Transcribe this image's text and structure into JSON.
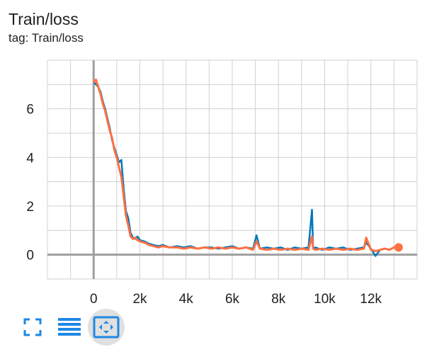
{
  "card": {
    "title": "Train/loss",
    "subtitle": "tag: Train/loss"
  },
  "toolbar": {
    "buttons": [
      {
        "icon": "fullscreen-icon"
      },
      {
        "icon": "toggle-log-scale-icon"
      },
      {
        "icon": "fit-domain-icon",
        "active": true
      }
    ]
  },
  "colors": {
    "raw_series": "#0077bb",
    "smoothed_series": "#ff7043",
    "grid": "#d0d0d0",
    "axis": "#9e9e9e",
    "active_button_bg": "#e0e0e0",
    "icon": "#1e88e5"
  },
  "chart_data": {
    "type": "line",
    "title": "",
    "xlabel": "",
    "ylabel": "",
    "xlim": [
      -2000,
      14000
    ],
    "ylim": [
      -1,
      8
    ],
    "x_ticks": [
      0,
      2000,
      4000,
      6000,
      8000,
      10000,
      12000
    ],
    "x_tick_labels": [
      "0",
      "2k",
      "4k",
      "6k",
      "8k",
      "10k",
      "12k"
    ],
    "y_ticks": [
      0,
      2,
      4,
      6
    ],
    "y_tick_labels": [
      "0",
      "2",
      "4",
      "6"
    ],
    "grid": true,
    "series": [
      {
        "color": "#0077bb",
        "x": [
          0,
          100,
          200,
          300,
          400,
          500,
          600,
          700,
          800,
          900,
          1000,
          1100,
          1200,
          1300,
          1400,
          1500,
          1600,
          1700,
          1800,
          1900,
          2000,
          2200,
          2400,
          2600,
          2800,
          3000,
          3300,
          3600,
          3900,
          4200,
          4500,
          4800,
          5100,
          5400,
          5700,
          6000,
          6300,
          6600,
          6900,
          7050,
          7200,
          7500,
          7800,
          8100,
          8400,
          8700,
          9000,
          9300,
          9450,
          9500,
          9600,
          9900,
          10200,
          10500,
          10800,
          11100,
          11400,
          11700,
          11800,
          12000,
          12200,
          12400,
          12600,
          12800,
          13000,
          13200
        ],
        "y": [
          7.1,
          7.0,
          6.9,
          6.7,
          6.3,
          6.0,
          5.6,
          5.2,
          4.7,
          4.4,
          4.1,
          3.8,
          3.9,
          2.7,
          1.8,
          1.5,
          0.9,
          0.7,
          0.65,
          0.75,
          0.6,
          0.55,
          0.45,
          0.4,
          0.35,
          0.4,
          0.3,
          0.35,
          0.3,
          0.35,
          0.25,
          0.3,
          0.3,
          0.25,
          0.3,
          0.35,
          0.25,
          0.3,
          0.25,
          0.8,
          0.25,
          0.3,
          0.25,
          0.3,
          0.2,
          0.3,
          0.25,
          0.3,
          1.85,
          0.25,
          0.3,
          0.2,
          0.3,
          0.25,
          0.3,
          0.2,
          0.25,
          0.3,
          0.5,
          0.25,
          -0.05,
          0.2,
          0.25,
          0.2,
          0.3,
          0.25
        ]
      },
      {
        "color": "#ff7043",
        "x": [
          0,
          100,
          200,
          300,
          400,
          500,
          600,
          700,
          800,
          900,
          1000,
          1100,
          1200,
          1300,
          1400,
          1500,
          1600,
          1700,
          1800,
          1900,
          2000,
          2200,
          2400,
          2600,
          2800,
          3000,
          3300,
          3600,
          3900,
          4200,
          4500,
          4800,
          5100,
          5400,
          5700,
          6000,
          6300,
          6600,
          6900,
          7050,
          7200,
          7500,
          7800,
          8100,
          8400,
          8700,
          9000,
          9300,
          9450,
          9500,
          9600,
          9900,
          10200,
          10500,
          10800,
          11100,
          11400,
          11700,
          11800,
          12000,
          12200,
          12400,
          12600,
          12800,
          13000,
          13200
        ],
        "y": [
          7.1,
          7.2,
          6.9,
          6.6,
          6.2,
          5.9,
          5.5,
          5.1,
          4.8,
          4.3,
          4.0,
          3.6,
          3.2,
          2.4,
          1.6,
          1.2,
          0.75,
          0.65,
          0.7,
          0.6,
          0.55,
          0.5,
          0.4,
          0.35,
          0.3,
          0.35,
          0.3,
          0.3,
          0.25,
          0.3,
          0.25,
          0.3,
          0.25,
          0.3,
          0.25,
          0.3,
          0.25,
          0.3,
          0.2,
          0.55,
          0.25,
          0.2,
          0.25,
          0.2,
          0.25,
          0.2,
          0.25,
          0.2,
          0.75,
          0.25,
          0.2,
          0.25,
          0.2,
          0.25,
          0.2,
          0.25,
          0.2,
          0.25,
          0.7,
          0.2,
          0.15,
          0.2,
          0.25,
          0.2,
          0.3,
          0.3
        ]
      }
    ]
  }
}
